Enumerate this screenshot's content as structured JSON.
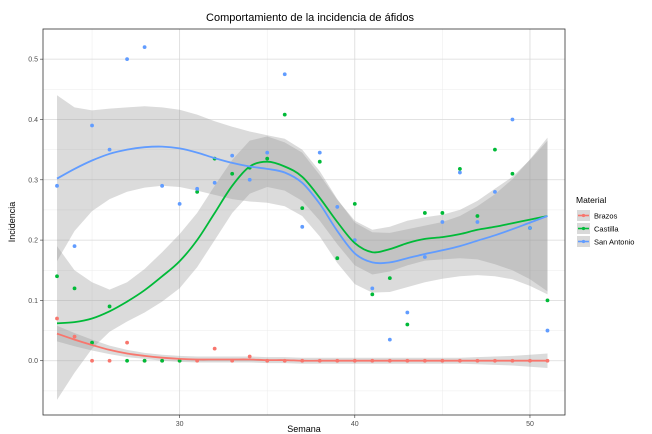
{
  "chart_data": {
    "type": "scatter",
    "title": "Comportamiento de la incidencia de áfidos",
    "xlabel": "Semana",
    "ylabel": "Incidencia",
    "xlim": [
      22.2,
      52
    ],
    "ylim": [
      -0.09,
      0.55
    ],
    "xticks": [
      30,
      40,
      50
    ],
    "yticks": [
      0.0,
      0.1,
      0.2,
      0.3,
      0.4,
      0.5
    ],
    "grid": true,
    "smooth": "loess with confidence band",
    "legend": {
      "title": "Material",
      "position": "right"
    },
    "series": [
      {
        "name": "Brazos",
        "color": "#F8766D",
        "points": [
          [
            23,
            0.07
          ],
          [
            24,
            0.04
          ],
          [
            25,
            0.0
          ],
          [
            26,
            0.0
          ],
          [
            27,
            0.03
          ],
          [
            28,
            0.0
          ],
          [
            29,
            0.0
          ],
          [
            30,
            0.0
          ],
          [
            31,
            0.0
          ],
          [
            32,
            0.02
          ],
          [
            33,
            0.0
          ],
          [
            34,
            0.007
          ],
          [
            35,
            0.0
          ],
          [
            36,
            0.0
          ],
          [
            37,
            0.0
          ],
          [
            38,
            0.0
          ],
          [
            39,
            0.0
          ],
          [
            40,
            0.0
          ],
          [
            41,
            0.0
          ],
          [
            42,
            0.0
          ],
          [
            43,
            0.0
          ],
          [
            44,
            0.0
          ],
          [
            45,
            0.0
          ],
          [
            46,
            0.0
          ],
          [
            47,
            0.0
          ],
          [
            48,
            0.0
          ],
          [
            49,
            0.0
          ],
          [
            50,
            0.0
          ],
          [
            51,
            0.0
          ]
        ],
        "fit": [
          [
            23,
            0.045
          ],
          [
            24,
            0.035
          ],
          [
            25,
            0.026
          ],
          [
            26,
            0.018
          ],
          [
            27,
            0.012
          ],
          [
            28,
            0.008
          ],
          [
            29,
            0.005
          ],
          [
            30,
            0.003
          ],
          [
            31,
            0.002
          ],
          [
            32,
            0.002
          ],
          [
            33,
            0.002
          ],
          [
            34,
            0.002
          ],
          [
            35,
            0.001
          ],
          [
            36,
            0.001
          ],
          [
            37,
            0.0
          ],
          [
            38,
            0.0
          ],
          [
            39,
            0.0
          ],
          [
            40,
            0.0
          ],
          [
            41,
            0.0
          ],
          [
            42,
            0.0
          ],
          [
            43,
            0.0
          ],
          [
            44,
            0.0
          ],
          [
            45,
            0.0
          ],
          [
            46,
            0.0
          ],
          [
            47,
            0.0
          ],
          [
            48,
            0.0
          ],
          [
            49,
            0.0
          ],
          [
            50,
            0.0
          ],
          [
            51,
            0.0
          ]
        ],
        "band": [
          [
            23,
            0.032,
            0.058
          ],
          [
            24,
            0.024,
            0.046
          ],
          [
            25,
            0.017,
            0.035
          ],
          [
            26,
            0.011,
            0.025
          ],
          [
            27,
            0.006,
            0.018
          ],
          [
            28,
            0.003,
            0.013
          ],
          [
            29,
            0.0,
            0.01
          ],
          [
            30,
            -0.002,
            0.008
          ],
          [
            31,
            -0.003,
            0.007
          ],
          [
            32,
            -0.003,
            0.007
          ],
          [
            33,
            -0.003,
            0.007
          ],
          [
            34,
            -0.003,
            0.007
          ],
          [
            35,
            -0.004,
            0.006
          ],
          [
            36,
            -0.004,
            0.006
          ],
          [
            37,
            -0.005,
            0.005
          ],
          [
            38,
            -0.005,
            0.005
          ],
          [
            39,
            -0.005,
            0.005
          ],
          [
            40,
            -0.005,
            0.005
          ],
          [
            41,
            -0.005,
            0.005
          ],
          [
            42,
            -0.005,
            0.005
          ],
          [
            43,
            -0.005,
            0.005
          ],
          [
            44,
            -0.005,
            0.005
          ],
          [
            45,
            -0.005,
            0.005
          ],
          [
            46,
            -0.005,
            0.005
          ],
          [
            47,
            -0.006,
            0.006
          ],
          [
            48,
            -0.007,
            0.007
          ],
          [
            49,
            -0.008,
            0.008
          ],
          [
            50,
            -0.01,
            0.01
          ],
          [
            51,
            -0.012,
            0.012
          ]
        ]
      },
      {
        "name": "Castilla",
        "color": "#00BA38",
        "points": [
          [
            23,
            0.14
          ],
          [
            24,
            0.12
          ],
          [
            25,
            0.03
          ],
          [
            26,
            0.09
          ],
          [
            27,
            0.0
          ],
          [
            28,
            0.0
          ],
          [
            29,
            0.0
          ],
          [
            30,
            0.0
          ],
          [
            31,
            0.28
          ],
          [
            32,
            0.335
          ],
          [
            33,
            0.31
          ],
          [
            34,
            0.32
          ],
          [
            35,
            0.335
          ],
          [
            36,
            0.408
          ],
          [
            37,
            0.253
          ],
          [
            38,
            0.33
          ],
          [
            39,
            0.17
          ],
          [
            40,
            0.26
          ],
          [
            41,
            0.11
          ],
          [
            42,
            0.137
          ],
          [
            43,
            0.06
          ],
          [
            44,
            0.245
          ],
          [
            45,
            0.245
          ],
          [
            46,
            0.318
          ],
          [
            47,
            0.24
          ],
          [
            48,
            0.35
          ],
          [
            49,
            0.31
          ],
          [
            50,
            0.22
          ],
          [
            51,
            0.1
          ]
        ],
        "fit": [
          [
            23,
            0.062
          ],
          [
            24,
            0.064
          ],
          [
            25,
            0.07
          ],
          [
            26,
            0.082
          ],
          [
            27,
            0.098
          ],
          [
            28,
            0.117
          ],
          [
            29,
            0.14
          ],
          [
            30,
            0.165
          ],
          [
            31,
            0.2
          ],
          [
            32,
            0.245
          ],
          [
            33,
            0.29
          ],
          [
            34,
            0.322
          ],
          [
            35,
            0.33
          ],
          [
            36,
            0.322
          ],
          [
            37,
            0.305
          ],
          [
            38,
            0.27
          ],
          [
            39,
            0.23
          ],
          [
            40,
            0.195
          ],
          [
            41,
            0.18
          ],
          [
            42,
            0.185
          ],
          [
            43,
            0.195
          ],
          [
            44,
            0.202
          ],
          [
            45,
            0.205
          ],
          [
            46,
            0.21
          ],
          [
            47,
            0.217
          ],
          [
            48,
            0.222
          ],
          [
            49,
            0.228
          ],
          [
            50,
            0.234
          ],
          [
            51,
            0.24
          ]
        ],
        "band": [
          [
            23,
            -0.065,
            0.19
          ],
          [
            24,
            -0.02,
            0.15
          ],
          [
            25,
            0.02,
            0.13
          ],
          [
            26,
            0.048,
            0.118
          ],
          [
            27,
            0.065,
            0.13
          ],
          [
            28,
            0.08,
            0.152
          ],
          [
            29,
            0.098,
            0.18
          ],
          [
            30,
            0.12,
            0.21
          ],
          [
            31,
            0.155,
            0.245
          ],
          [
            32,
            0.2,
            0.29
          ],
          [
            33,
            0.245,
            0.333
          ],
          [
            34,
            0.277,
            0.365
          ],
          [
            35,
            0.288,
            0.372
          ],
          [
            36,
            0.282,
            0.362
          ],
          [
            37,
            0.265,
            0.345
          ],
          [
            38,
            0.232,
            0.308
          ],
          [
            39,
            0.193,
            0.267
          ],
          [
            40,
            0.158,
            0.232
          ],
          [
            41,
            0.143,
            0.217
          ],
          [
            42,
            0.148,
            0.222
          ],
          [
            43,
            0.158,
            0.232
          ],
          [
            44,
            0.166,
            0.238
          ],
          [
            45,
            0.168,
            0.242
          ],
          [
            46,
            0.17,
            0.25
          ],
          [
            47,
            0.168,
            0.265
          ],
          [
            48,
            0.16,
            0.285
          ],
          [
            49,
            0.15,
            0.305
          ],
          [
            50,
            0.135,
            0.333
          ],
          [
            51,
            0.115,
            0.365
          ]
        ]
      },
      {
        "name": "San Antonio",
        "color": "#619CFF",
        "points": [
          [
            23,
            0.29
          ],
          [
            24,
            0.19
          ],
          [
            25,
            0.39
          ],
          [
            26,
            0.35
          ],
          [
            27,
            0.5
          ],
          [
            28,
            0.52
          ],
          [
            29,
            0.29
          ],
          [
            30,
            0.26
          ],
          [
            31,
            0.285
          ],
          [
            32,
            0.295
          ],
          [
            33,
            0.34
          ],
          [
            34,
            0.3
          ],
          [
            35,
            0.345
          ],
          [
            36,
            0.475
          ],
          [
            37,
            0.222
          ],
          [
            38,
            0.345
          ],
          [
            39,
            0.255
          ],
          [
            40,
            0.2
          ],
          [
            41,
            0.12
          ],
          [
            42,
            0.035
          ],
          [
            43,
            0.08
          ],
          [
            44,
            0.172
          ],
          [
            45,
            0.23
          ],
          [
            46,
            0.312
          ],
          [
            47,
            0.23
          ],
          [
            48,
            0.28
          ],
          [
            49,
            0.4
          ],
          [
            50,
            0.22
          ],
          [
            51,
            0.05
          ]
        ],
        "fit": [
          [
            23,
            0.302
          ],
          [
            24,
            0.318
          ],
          [
            25,
            0.332
          ],
          [
            26,
            0.343
          ],
          [
            27,
            0.35
          ],
          [
            28,
            0.354
          ],
          [
            29,
            0.355
          ],
          [
            30,
            0.352
          ],
          [
            31,
            0.345
          ],
          [
            32,
            0.336
          ],
          [
            33,
            0.328
          ],
          [
            34,
            0.322
          ],
          [
            35,
            0.318
          ],
          [
            36,
            0.312
          ],
          [
            37,
            0.295
          ],
          [
            38,
            0.26
          ],
          [
            39,
            0.215
          ],
          [
            40,
            0.178
          ],
          [
            41,
            0.163
          ],
          [
            42,
            0.163
          ],
          [
            43,
            0.17
          ],
          [
            44,
            0.177
          ],
          [
            45,
            0.183
          ],
          [
            46,
            0.19
          ],
          [
            47,
            0.199
          ],
          [
            48,
            0.208
          ],
          [
            49,
            0.218
          ],
          [
            50,
            0.229
          ],
          [
            51,
            0.24
          ]
        ],
        "band": [
          [
            23,
            0.165,
            0.44
          ],
          [
            24,
            0.215,
            0.42
          ],
          [
            25,
            0.248,
            0.415
          ],
          [
            26,
            0.268,
            0.418
          ],
          [
            27,
            0.28,
            0.42
          ],
          [
            28,
            0.287,
            0.422
          ],
          [
            29,
            0.29,
            0.42
          ],
          [
            30,
            0.288,
            0.416
          ],
          [
            31,
            0.282,
            0.408
          ],
          [
            32,
            0.275,
            0.397
          ],
          [
            33,
            0.268,
            0.388
          ],
          [
            34,
            0.264,
            0.38
          ],
          [
            35,
            0.262,
            0.374
          ],
          [
            36,
            0.256,
            0.368
          ],
          [
            37,
            0.24,
            0.35
          ],
          [
            38,
            0.206,
            0.314
          ],
          [
            39,
            0.162,
            0.268
          ],
          [
            40,
            0.127,
            0.229
          ],
          [
            41,
            0.113,
            0.213
          ],
          [
            42,
            0.114,
            0.212
          ],
          [
            43,
            0.122,
            0.218
          ],
          [
            44,
            0.13,
            0.224
          ],
          [
            45,
            0.136,
            0.23
          ],
          [
            46,
            0.14,
            0.24
          ],
          [
            47,
            0.142,
            0.256
          ],
          [
            48,
            0.14,
            0.276
          ],
          [
            49,
            0.135,
            0.301
          ],
          [
            50,
            0.124,
            0.334
          ],
          [
            51,
            0.11,
            0.37
          ]
        ]
      }
    ]
  }
}
